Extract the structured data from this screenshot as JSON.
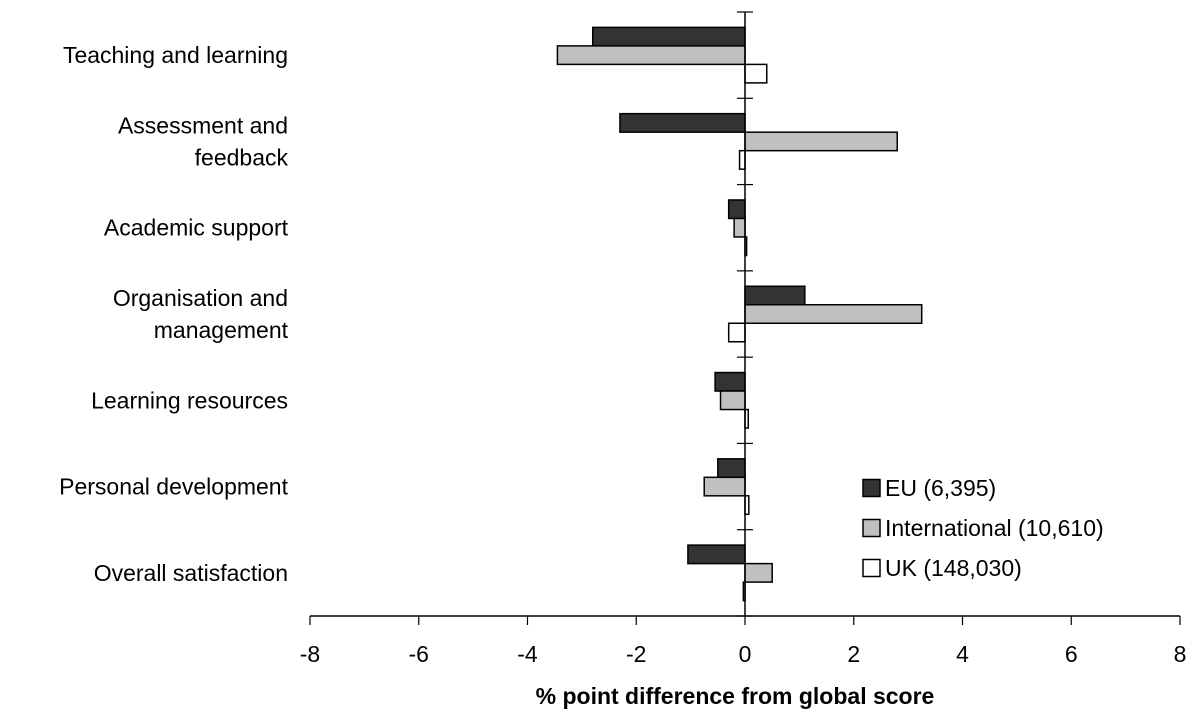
{
  "chart_data": {
    "type": "bar",
    "orientation": "horizontal",
    "categories": [
      [
        "Teaching and learning"
      ],
      [
        "Assessment and",
        "feedback"
      ],
      [
        "Academic support"
      ],
      [
        "Organisation and",
        "management"
      ],
      [
        "Learning resources"
      ],
      [
        "Personal development"
      ],
      [
        "Overall satisfaction"
      ]
    ],
    "series": [
      {
        "name": "EU (6,395)",
        "color": "#333333",
        "values": [
          -2.8,
          -2.3,
          -0.3,
          1.1,
          -0.55,
          -0.5,
          -1.05
        ]
      },
      {
        "name": "International (10,610)",
        "color": "#c0c0c0",
        "values": [
          -3.45,
          2.8,
          -0.2,
          3.25,
          -0.45,
          -0.75,
          0.5
        ]
      },
      {
        "name": "UK (148,030)",
        "color": "#ffffff",
        "values": [
          0.4,
          -0.1,
          0.03,
          -0.3,
          0.06,
          0.07,
          -0.03
        ]
      }
    ],
    "xlim": [
      -8,
      8
    ],
    "xticks": [
      -8,
      -6,
      -4,
      -2,
      0,
      2,
      4,
      6,
      8
    ],
    "xlabel": "% point difference from global score",
    "ylabel": "",
    "title": "",
    "legend_position": "bottom-right",
    "grid": false
  }
}
